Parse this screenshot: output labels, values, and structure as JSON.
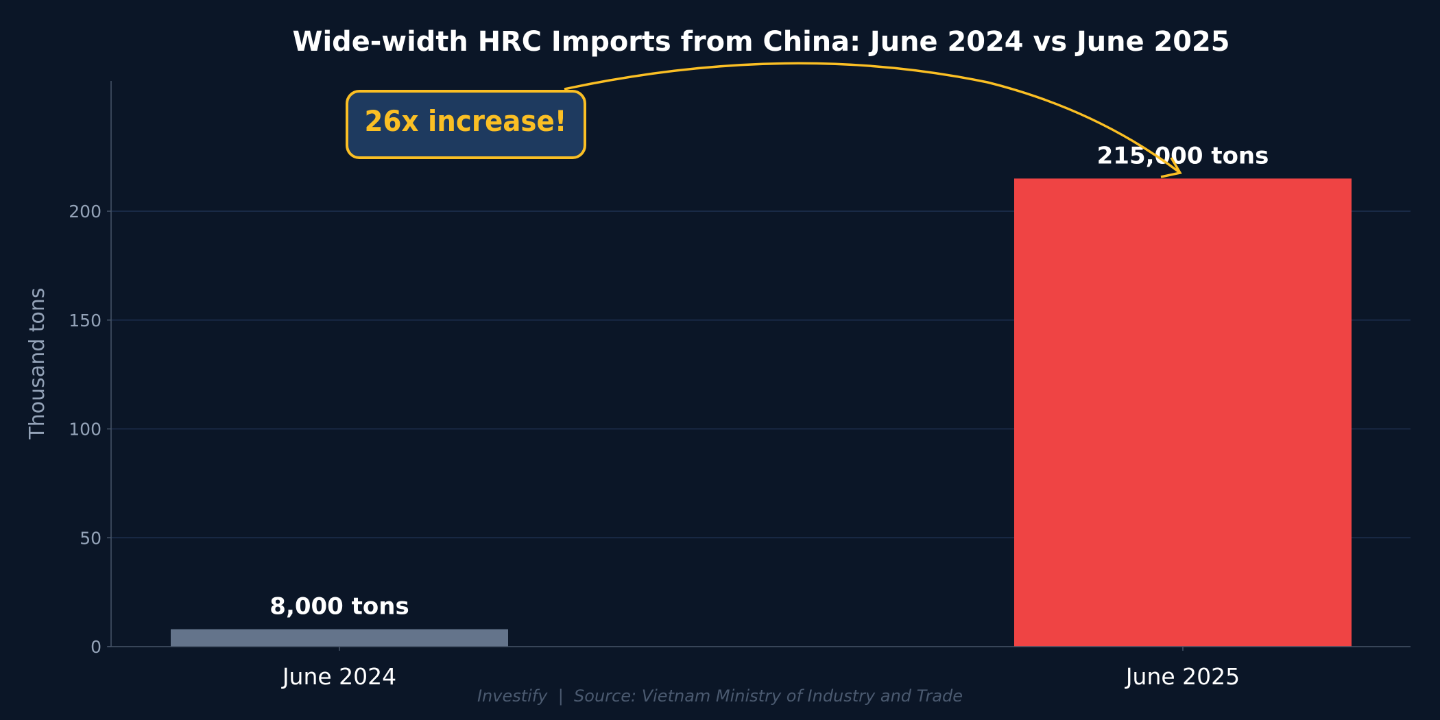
{
  "chart_data": {
    "type": "bar",
    "title": "Wide-width HRC Imports from China: June 2024 vs June 2025",
    "xlabel": "",
    "ylabel": "Thousand tons",
    "categories": [
      "June 2024",
      "June 2025"
    ],
    "values": [
      8,
      215
    ],
    "data_labels": [
      "8,000 tons",
      "215,000 tons"
    ],
    "ylim": [
      0,
      260
    ],
    "yticks": [
      0,
      50,
      100,
      150,
      200
    ],
    "grid": "horizontal",
    "bar_colors": [
      "#64748b",
      "#ef4444"
    ],
    "annotation": {
      "text": "26x increase!",
      "color": "#fbbf24",
      "arrow_to": "June 2025"
    },
    "footer": "Investify  |  Source: Vietnam Ministry of Industry and Trade"
  },
  "colors": {
    "background": "#0b1627",
    "grid": "#1e3050",
    "axis": "#475569",
    "tick_text": "#94a3b8",
    "footer_text": "#4b5a70",
    "annotation_fill": "#1e3a5f"
  }
}
